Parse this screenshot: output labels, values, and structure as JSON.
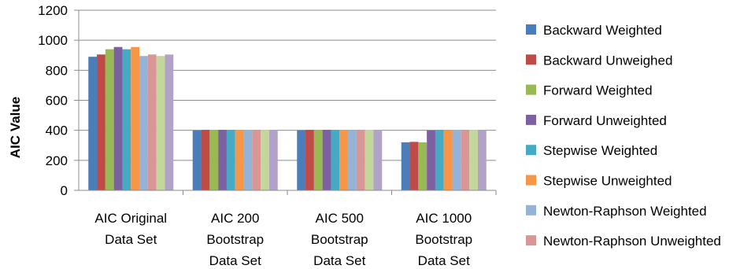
{
  "chart_data": {
    "type": "bar",
    "title": "",
    "xlabel": "",
    "ylabel": "AIC Value",
    "ylim": [
      0,
      1200
    ],
    "yticks": [
      0,
      200,
      400,
      600,
      800,
      1000,
      1200
    ],
    "grid": "horizontal",
    "legend_position": "right",
    "categories": [
      [
        "AIC Original",
        "Data Set"
      ],
      [
        "AIC 200",
        "Bootstrap",
        "Data Set"
      ],
      [
        "AIC 500",
        "Bootstrap",
        "Data Set"
      ],
      [
        "AIC 1000",
        "Bootstrap",
        "Data Set"
      ]
    ],
    "series": [
      {
        "name": "Backward Weighted",
        "color": "#4a7ebb",
        "values": [
          890,
          400,
          400,
          320
        ]
      },
      {
        "name": "Backward Unweighed",
        "color": "#be4b48",
        "values": [
          905,
          403,
          403,
          323
        ]
      },
      {
        "name": "Forward Weighted",
        "color": "#98b954",
        "values": [
          940,
          403,
          403,
          320
        ]
      },
      {
        "name": "Forward Unweighted",
        "color": "#7d60a0",
        "values": [
          955,
          403,
          403,
          400
        ]
      },
      {
        "name": "Stepwise Weighted",
        "color": "#46aac5",
        "values": [
          940,
          403,
          403,
          403
        ]
      },
      {
        "name": "Stepwise Unweighted",
        "color": "#f79646",
        "values": [
          955,
          403,
          403,
          403
        ]
      },
      {
        "name": "Newton-Raphson Weighted",
        "color": "#95b3d7",
        "values": [
          895,
          403,
          403,
          403
        ]
      },
      {
        "name": "Newton-Raphson Unweighted",
        "color": "#d99694",
        "values": [
          905,
          403,
          403,
          403
        ]
      },
      {
        "name": "",
        "color": "#c3d69b",
        "values": [
          895,
          403,
          403,
          403
        ]
      },
      {
        "name": "",
        "color": "#b2a2c7",
        "values": [
          905,
          403,
          403,
          403
        ]
      }
    ]
  }
}
